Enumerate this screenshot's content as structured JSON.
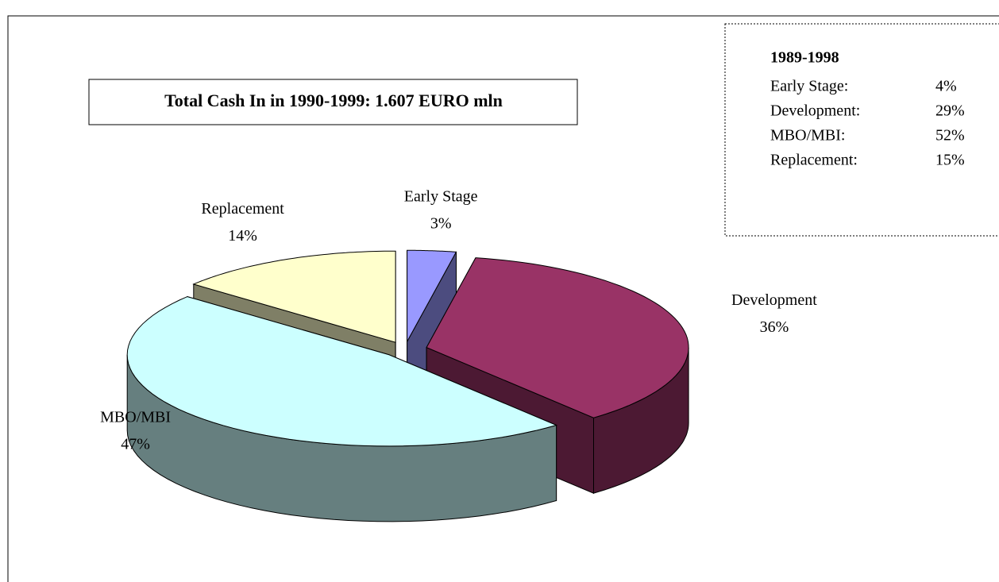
{
  "chart_data": {
    "type": "pie",
    "annotation": "Total Cash In in 1990-1999: 1.607 EURO mln",
    "categories": [
      "Early Stage",
      "Development",
      "MBO/MBI",
      "Replacement"
    ],
    "values": [
      3,
      36,
      47,
      14
    ],
    "value_labels": [
      "3%",
      "36%",
      "47%",
      "14%"
    ],
    "colors": [
      "#9999ff",
      "#993366",
      "#ccffff",
      "#ffffcc"
    ],
    "comparison": {
      "title": "1989-1998",
      "rows": [
        [
          "Early Stage:",
          "4%"
        ],
        [
          "Development:",
          "29%"
        ],
        [
          "MBO/MBI:",
          "52%"
        ],
        [
          "Replacement:",
          "15%"
        ]
      ]
    }
  }
}
